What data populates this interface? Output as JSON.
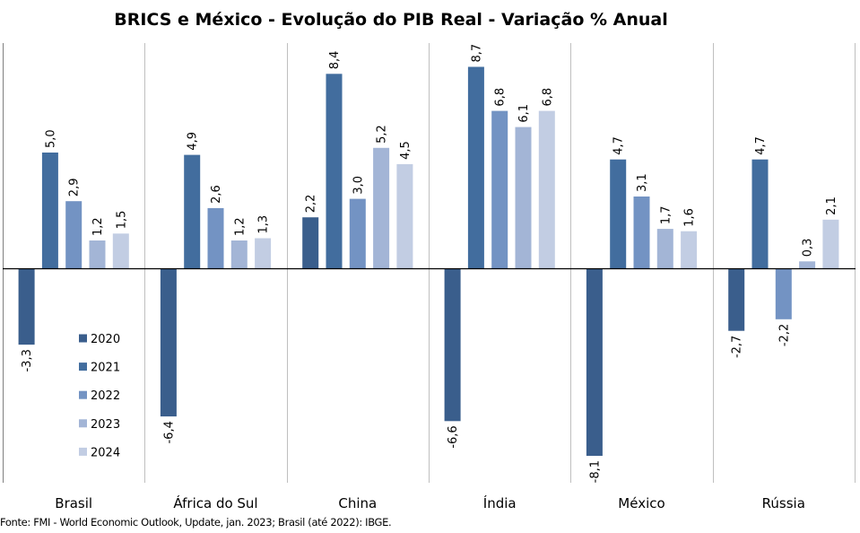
{
  "chart_data": {
    "type": "bar",
    "title": "BRICS e México - Evolução do PIB Real - Variação % Anual",
    "xlabel": "",
    "ylabel": "",
    "categories": [
      "Brasil",
      "África do Sul",
      "China",
      "Índia",
      "México",
      "Rússia"
    ],
    "series": [
      {
        "name": "2020",
        "color": "#3A5E8C",
        "values": [
          -3.3,
          -6.4,
          2.2,
          -6.6,
          -8.1,
          -2.7
        ],
        "labels": [
          "-3,3",
          "-6,4",
          "2,2",
          "-6,6",
          "-8,1",
          "-2,7"
        ]
      },
      {
        "name": "2021",
        "color": "#426D9E",
        "values": [
          5.0,
          4.9,
          8.4,
          8.7,
          4.7,
          4.7
        ],
        "labels": [
          "5,0",
          "4,9",
          "8,4",
          "8,7",
          "4,7",
          "4,7"
        ]
      },
      {
        "name": "2022",
        "color": "#7393C3",
        "values": [
          2.9,
          2.6,
          3.0,
          6.8,
          3.1,
          -2.2
        ],
        "labels": [
          "2,9",
          "2,6",
          "3,0",
          "6,8",
          "3,1",
          "-2,2"
        ]
      },
      {
        "name": "2023",
        "color": "#A3B5D6",
        "values": [
          1.2,
          1.2,
          5.2,
          6.1,
          1.7,
          0.3
        ],
        "labels": [
          "1,2",
          "1,2",
          "5,2",
          "6,1",
          "1,7",
          "0,3"
        ]
      },
      {
        "name": "2024",
        "color": "#C2CDE3",
        "values": [
          1.5,
          1.3,
          4.5,
          6.8,
          1.6,
          2.1
        ],
        "labels": [
          "1,5",
          "1,3",
          "4,5",
          "6,8",
          "1,6",
          "2,1"
        ]
      }
    ],
    "ylim": [
      -9.5,
      9.8
    ],
    "y_axis_visible": false,
    "grid": false,
    "category_separators": true,
    "legend": {
      "position": "bottom-left-inside",
      "entries": [
        "2020",
        "2021",
        "2022",
        "2023",
        "2024"
      ]
    },
    "data_labels": "rotated-vertical"
  },
  "source_note": "Fonte: FMI - World Economic Outlook, Update, jan. 2023;  Brasil (até 2022):  IBGE."
}
